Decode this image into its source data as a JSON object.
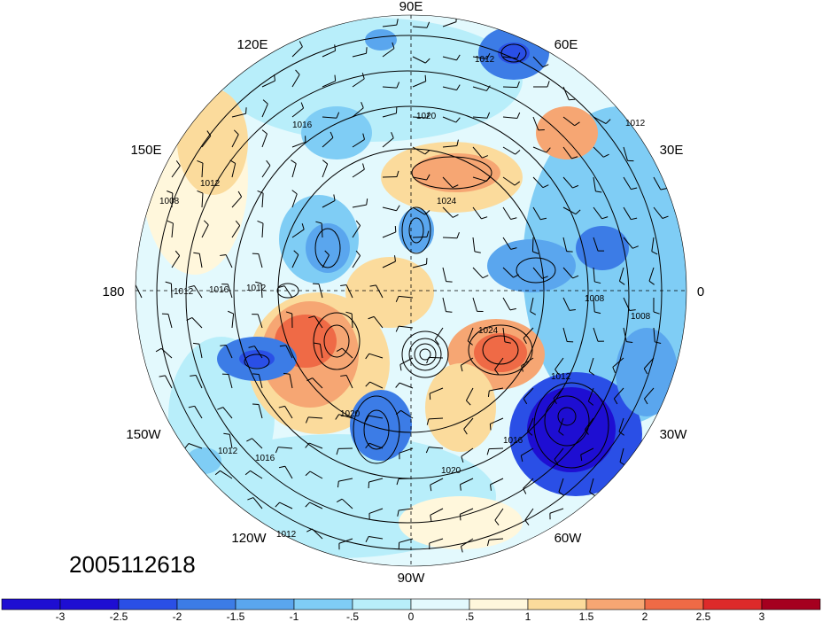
{
  "timestamp": "2005112618",
  "longitude_labels": [
    {
      "text": "90E"
    },
    {
      "text": "60E"
    },
    {
      "text": "30E"
    },
    {
      "text": "0"
    },
    {
      "text": "30W"
    },
    {
      "text": "60W"
    },
    {
      "text": "90W"
    },
    {
      "text": "120W"
    },
    {
      "text": "150W"
    },
    {
      "text": "180"
    },
    {
      "text": "150E"
    },
    {
      "text": "120E"
    }
  ],
  "contour_labels": [
    "1012",
    "1016",
    "1020",
    "1024",
    "1008"
  ],
  "colorbar": {
    "ticks": [
      "-3",
      "-2.5",
      "-2",
      "-1.5",
      "-1",
      "-.5",
      "0",
      ".5",
      "1",
      "1.5",
      "2",
      "2.5",
      "3"
    ],
    "colors": [
      "#1e0ed2",
      "#2a4fe6",
      "#3c7ce6",
      "#5aa6ee",
      "#7fcdf5",
      "#b8eefa",
      "#e3f9fd",
      "#fff7dc",
      "#fbdb9c",
      "#f6a673",
      "#ef6a46",
      "#dd2a2a",
      "#a5001f"
    ]
  },
  "colors": {
    "strong_low": "#1e0ed2",
    "low": "#3c7ce6",
    "weak_low": "#b8eefa",
    "weak_high": "#fbdb9c",
    "high": "#ef6a46"
  }
}
